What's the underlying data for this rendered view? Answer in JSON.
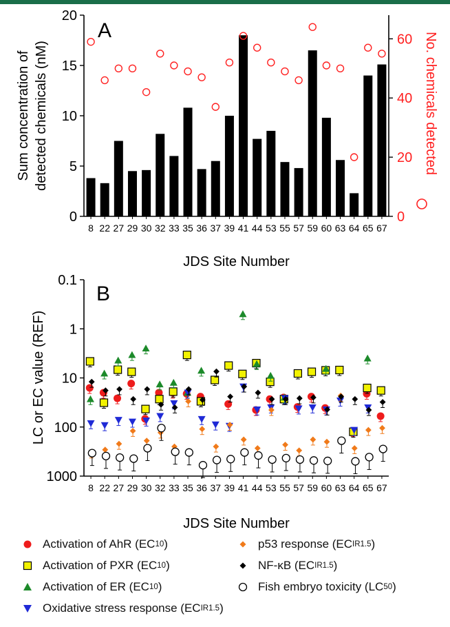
{
  "chart_data": [
    {
      "panel": "A",
      "type": "bar",
      "categories": [
        "8",
        "22",
        "27",
        "29",
        "30",
        "32",
        "33",
        "35",
        "36",
        "37",
        "39",
        "41",
        "44",
        "53",
        "55",
        "57",
        "59",
        "60",
        "63",
        "64",
        "65",
        "67"
      ],
      "xlabel": "JDS Site Number",
      "ylabel_lines": [
        "Sum concentration of",
        "detected chemicals (nM)"
      ],
      "y2label": "No. chemicals detected",
      "ylim": [
        0,
        20
      ],
      "yticks": [
        0,
        5,
        10,
        15,
        20
      ],
      "y2lim": [
        0,
        68
      ],
      "y2ticks": [
        0,
        20,
        40,
        60
      ],
      "bar_color": "#000000",
      "marker_color": "#ff2020",
      "series": [
        {
          "values": [
            3.8,
            3.3,
            7.5,
            4.5,
            4.6,
            8.2,
            6.0,
            10.8,
            4.7,
            5.5,
            10.0,
            18.0,
            7.7,
            8.5,
            5.4,
            4.8,
            16.5,
            9.8,
            5.6,
            2.3,
            14.0,
            15.1
          ],
          "axis": "left"
        },
        {
          "values": [
            59,
            46,
            50,
            50,
            42,
            55,
            51,
            49,
            47,
            37,
            52,
            61,
            57,
            52,
            49,
            46,
            64,
            51,
            50,
            20,
            57,
            55
          ],
          "axis": "right"
        }
      ]
    },
    {
      "panel": "B",
      "type": "scatter",
      "categories": [
        "8",
        "22",
        "27",
        "29",
        "30",
        "32",
        "33",
        "35",
        "36",
        "37",
        "39",
        "41",
        "44",
        "53",
        "55",
        "57",
        "59",
        "60",
        "63",
        "64",
        "65",
        "67"
      ],
      "xlabel": "JDS Site Number",
      "ylabel": "LC or EC value (REF)",
      "yscale": "log-reversed",
      "yticks": [
        "0.1",
        "1",
        "10",
        "100",
        "1000"
      ],
      "ylim": [
        0.1,
        1000
      ],
      "series": [
        {
          "label": "Activation of AhR (EC",
          "sub": "10",
          "tail": ")",
          "marker": "circle",
          "color": "#ee1c1c",
          "values": [
            16,
            20,
            26,
            13,
            68,
            20,
            20,
            21,
            24,
            null,
            34,
            null,
            45,
            27,
            25,
            39,
            24,
            41,
            null,
            120,
            21,
            60
          ]
        },
        {
          "label": "Activation of PXR (EC",
          "sub": "10",
          "tail": ")",
          "marker": "square",
          "color": "#f2f200",
          "values": [
            4.6,
            32,
            6.8,
            7.5,
            43,
            27,
            19,
            3.4,
            30,
            11,
            5.6,
            8.3,
            5.0,
            12,
            27,
            8.1,
            7.5,
            7.0,
            6.9,
            125,
            16,
            18
          ]
        },
        {
          "label": "Activation of ER (EC",
          "sub": "10",
          "tail": ")",
          "marker": "triangle-up",
          "color": "#1c8a2a",
          "values": [
            27,
            8.1,
            4.4,
            3.4,
            2.5,
            13.5,
            12.5,
            20,
            7.1,
            null,
            null,
            0.5,
            5.2,
            9.0,
            25,
            null,
            null,
            6.5,
            null,
            null,
            4.0,
            null
          ]
        },
        {
          "label": "Oxidative stress response (EC",
          "sub": "IR1.5",
          "tail": ")",
          "marker": "triangle-down",
          "color": "#1f2ad6",
          "values": [
            84,
            92,
            72,
            78,
            74,
            60,
            33,
            20,
            69,
            89,
            95,
            15,
            44,
            40,
            26,
            42,
            40,
            44,
            29,
            115,
            40,
            null
          ]
        },
        {
          "label": "p53 response (EC",
          "sub": "IR1.5",
          "tail": ")",
          "marker": "diamond",
          "color": "#f07a1a",
          "values": [
            330,
            290,
            220,
            120,
            190,
            130,
            250,
            30,
            110,
            250,
            90,
            180,
            270,
            45,
            230,
            300,
            180,
            200,
            23,
            270,
            115,
            105
          ]
        },
        {
          "label": "NF-κB (EC",
          "sub": "IR1.5",
          "tail": ")",
          "marker": "diamond",
          "color": "#000000",
          "values": [
            12,
            18,
            17,
            27,
            17,
            35,
            40,
            17,
            28,
            7.4,
            24,
            15,
            20,
            27,
            27,
            26,
            25,
            44,
            24,
            27,
            45,
            31
          ]
        },
        {
          "label": "Fish embryo toxicity (LC",
          "sub": "50",
          "tail": ")",
          "marker": "circle-open",
          "color": "#000000",
          "values": [
            340,
            390,
            420,
            440,
            270,
            105,
            320,
            330,
            600,
            470,
            450,
            330,
            380,
            460,
            430,
            460,
            480,
            490,
            190,
            500,
            410,
            280
          ]
        }
      ]
    }
  ]
}
